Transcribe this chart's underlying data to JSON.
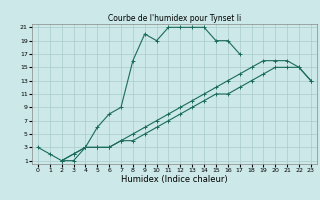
{
  "title": "Courbe de l'humidex pour Tynset Ii",
  "xlabel": "Humidex (Indice chaleur)",
  "bg_color": "#cce8e8",
  "grid_color": "#aacccc",
  "line_color": "#1a6b5a",
  "curve1_x": [
    0,
    1,
    2,
    3,
    4,
    5,
    6,
    7,
    8,
    9,
    10,
    11,
    12,
    13,
    14,
    15,
    16,
    17
  ],
  "curve1_y": [
    3,
    2,
    1,
    1,
    3,
    6,
    8,
    9,
    16,
    20,
    19,
    21,
    21,
    21,
    21,
    19,
    19,
    17
  ],
  "curve2_x": [
    2,
    3,
    4,
    5,
    6,
    7,
    8,
    9,
    10,
    11,
    12,
    13,
    14,
    15,
    16,
    17,
    18,
    19,
    20,
    21,
    22,
    23
  ],
  "curve2_y": [
    1,
    2,
    3,
    3,
    3,
    4,
    5,
    6,
    7,
    8,
    9,
    10,
    11,
    12,
    13,
    14,
    15,
    16,
    16,
    16,
    15,
    13
  ],
  "curve3_x": [
    2,
    3,
    4,
    5,
    6,
    7,
    8,
    9,
    10,
    11,
    12,
    13,
    14,
    15,
    16,
    17,
    18,
    19,
    20,
    21,
    22,
    23
  ],
  "curve3_y": [
    1,
    2,
    3,
    3,
    3,
    4,
    4,
    5,
    6,
    7,
    8,
    9,
    10,
    11,
    11,
    12,
    13,
    14,
    15,
    15,
    15,
    13
  ],
  "xmin": 0,
  "xmax": 23,
  "ymin": 1,
  "ymax": 21,
  "xticks": [
    0,
    1,
    2,
    3,
    4,
    5,
    6,
    7,
    8,
    9,
    10,
    11,
    12,
    13,
    14,
    15,
    16,
    17,
    18,
    19,
    20,
    21,
    22,
    23
  ],
  "yticks": [
    1,
    3,
    5,
    7,
    9,
    11,
    13,
    15,
    17,
    19,
    21
  ],
  "title_fontsize": 5.5,
  "label_fontsize": 6,
  "tick_fontsize": 4.5
}
